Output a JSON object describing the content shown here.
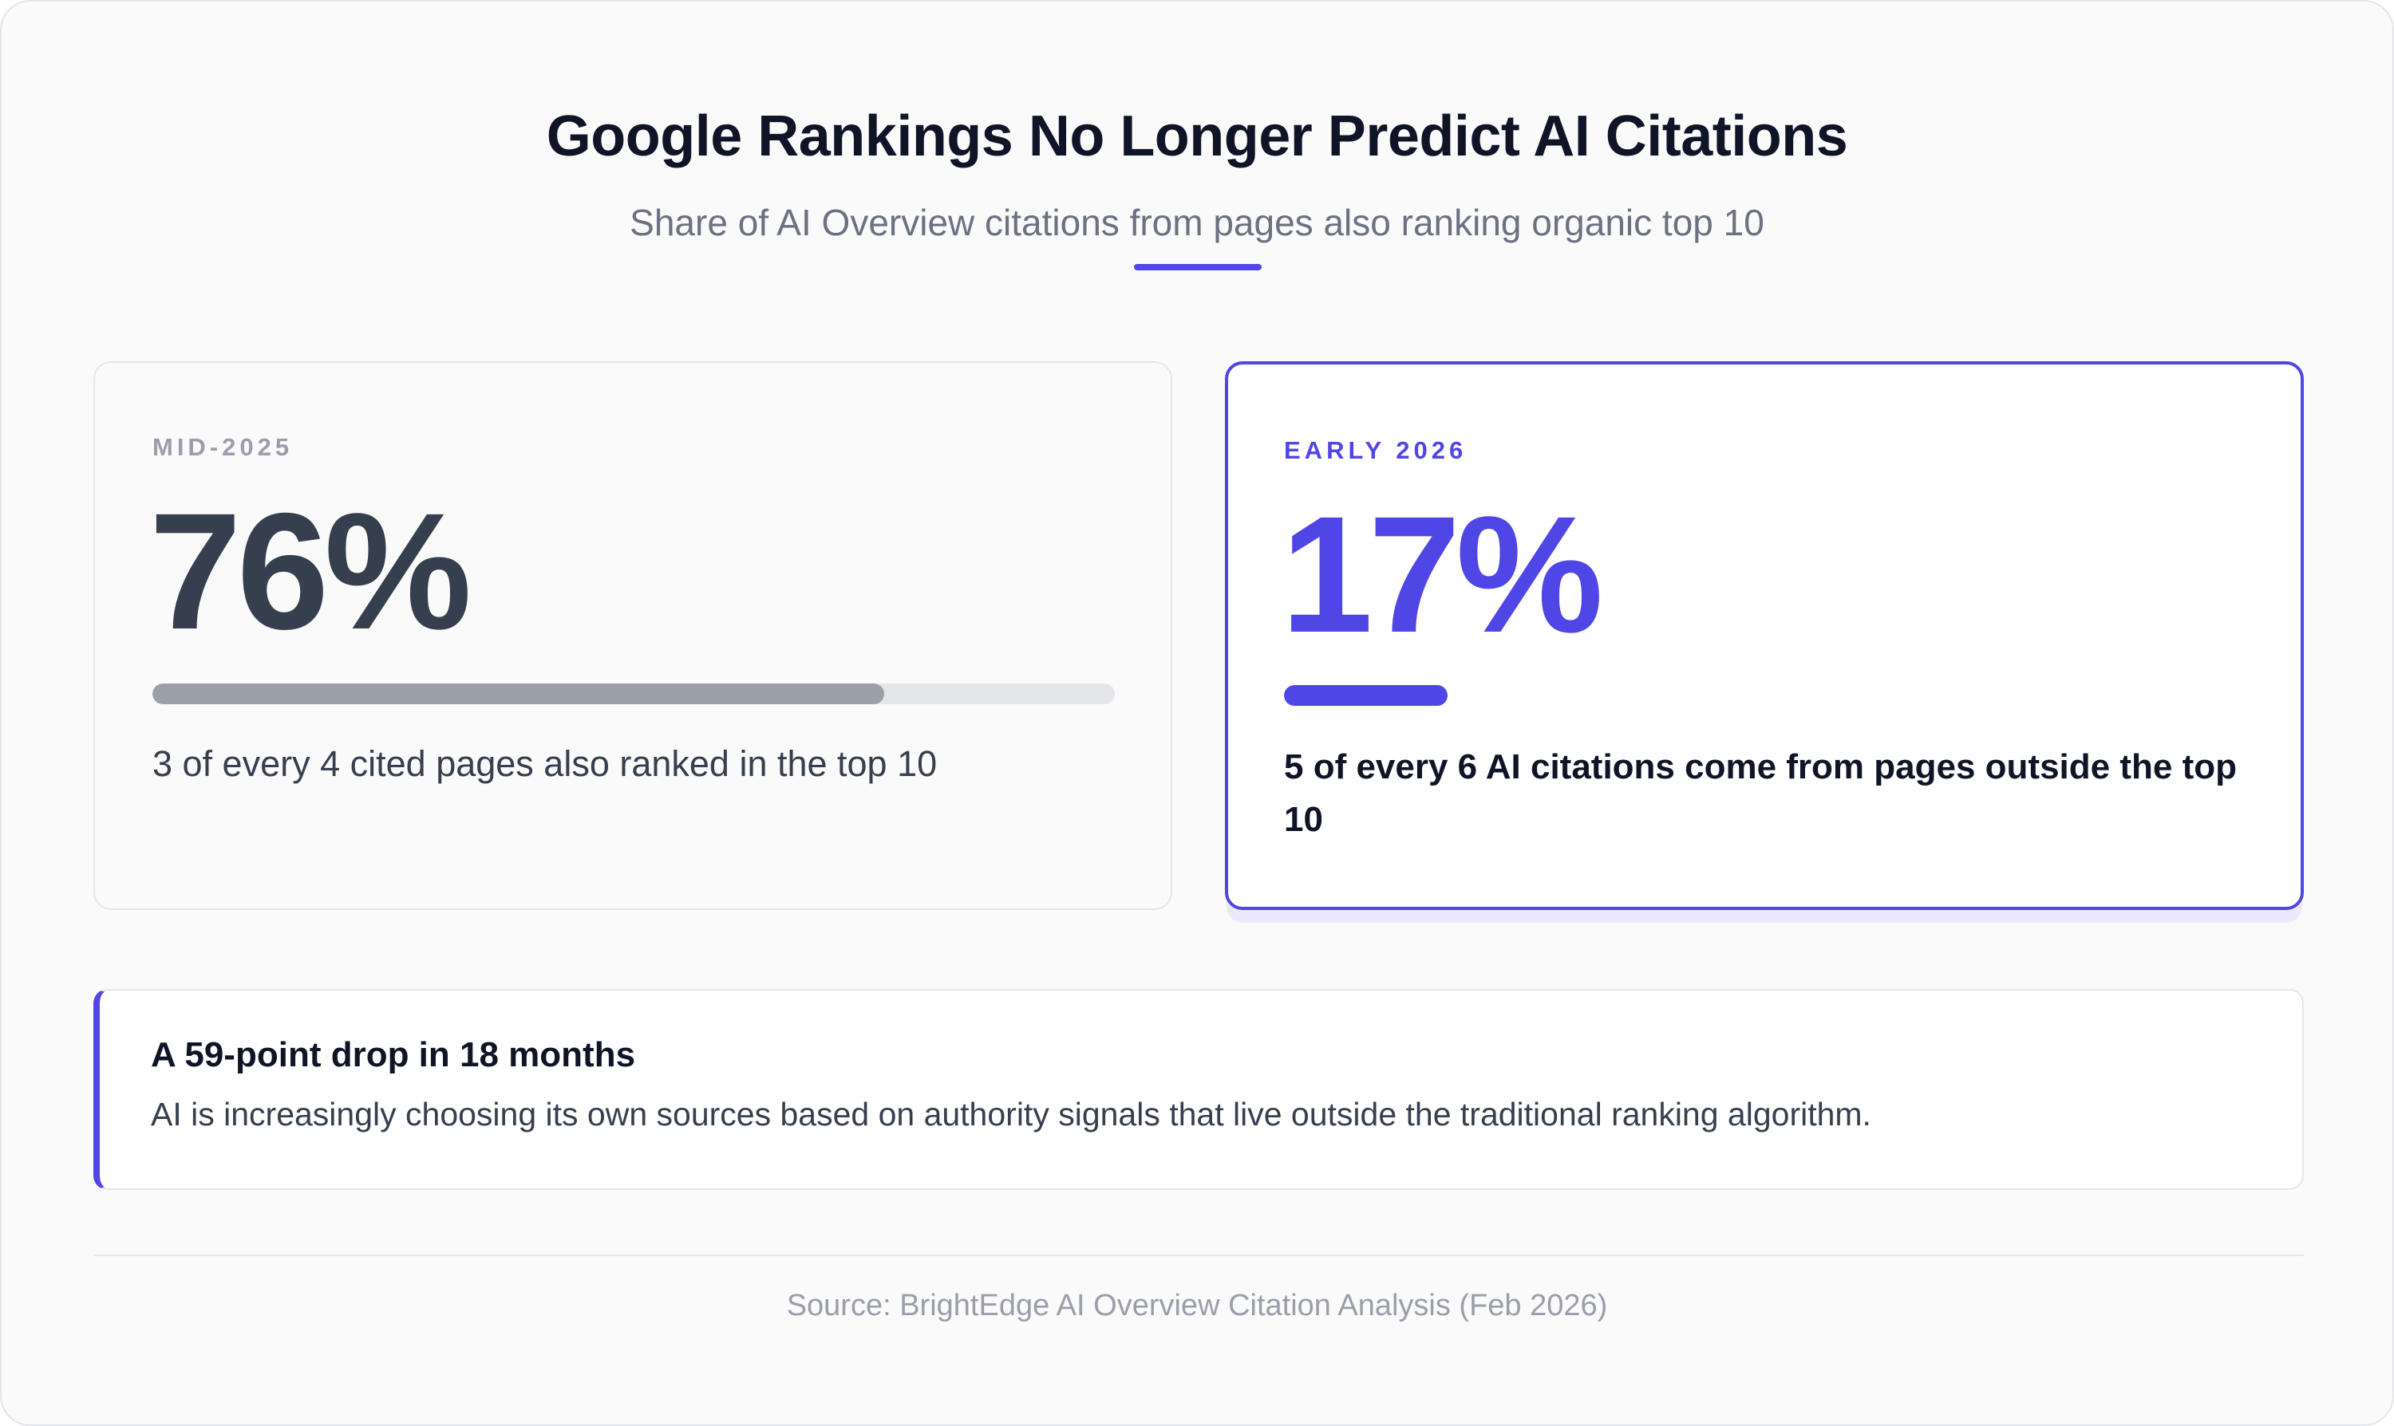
{
  "header": {
    "title": "Google Rankings No Longer Predict AI Citations",
    "subtitle": "Share of AI Overview citations from pages also ranking organic top 10"
  },
  "cards": [
    {
      "period": "MID-2025",
      "value": "76%",
      "bar_fraction": 0.76,
      "description": "3 of every 4 cited pages also ranked in the top 10",
      "highlighted": false
    },
    {
      "period": "EARLY 2026",
      "value": "17%",
      "bar_fraction": 0.17,
      "description": "5 of every 6 AI citations come from pages outside the top 10",
      "highlighted": true
    }
  ],
  "callout": {
    "title": "A 59-point drop in 18 months",
    "body": "AI is increasingly choosing its own sources based on authority signals that live outside the traditional ranking algorithm."
  },
  "footer": {
    "source": "Source: BrightEdge AI Overview Citation Analysis (Feb 2026)"
  },
  "colors": {
    "accent": "#4f46e5",
    "title": "#0f1526",
    "muted": "#9a9ea9",
    "value_dark": "#363f4e",
    "bar_gray": "#9b9fa8"
  }
}
